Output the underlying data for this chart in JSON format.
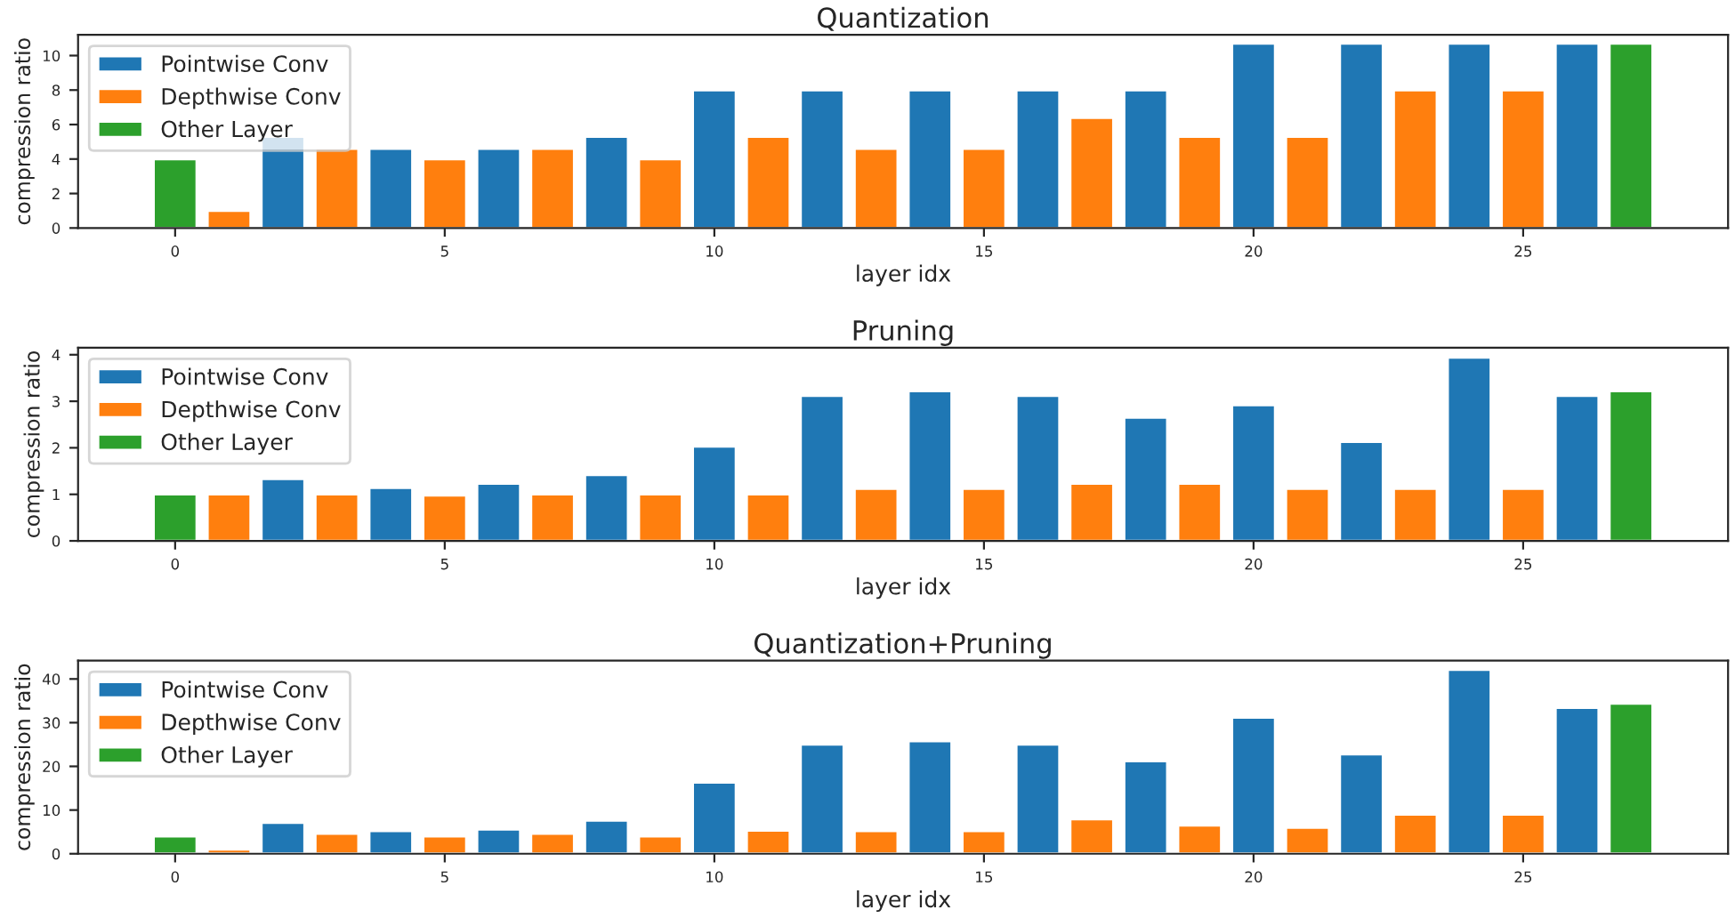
{
  "chart_data": [
    {
      "type": "bar",
      "title": "Quantization",
      "xlabel": "layer idx",
      "ylabel": "compression ratio",
      "xlim": [
        -1.8,
        28.8
      ],
      "xticks": [
        0,
        5,
        10,
        15,
        20,
        25
      ],
      "ylim": [
        0,
        11.2
      ],
      "yticks": [
        0,
        2,
        4,
        6,
        8,
        10
      ],
      "grid": false,
      "legend": "top left",
      "series": [
        {
          "name": "Pointwise Conv",
          "color": "#1f77b4",
          "x": [
            2,
            4,
            6,
            8,
            10,
            12,
            14,
            16,
            18,
            20,
            22,
            24,
            26
          ],
          "values": [
            5.3,
            4.6,
            4.6,
            5.3,
            8,
            8,
            8,
            8,
            8,
            10.7,
            10.7,
            10.7,
            10.7
          ]
        },
        {
          "name": "Depthwise Conv",
          "color": "#ff7f0e",
          "x": [
            1,
            3,
            5,
            7,
            9,
            11,
            13,
            15,
            17,
            19,
            21,
            23,
            25
          ],
          "values": [
            1,
            4.6,
            4,
            4.6,
            4,
            5.3,
            4.6,
            4.6,
            6.4,
            5.3,
            5.3,
            8,
            8
          ]
        },
        {
          "name": "Other Layer",
          "color": "#2ca02c",
          "x": [
            0,
            27
          ],
          "values": [
            4,
            10.7
          ]
        }
      ]
    },
    {
      "type": "bar",
      "title": "Pruning",
      "xlabel": "layer idx",
      "ylabel": "compression ratio",
      "xlim": [
        -1.8,
        28.8
      ],
      "xticks": [
        0,
        5,
        10,
        15,
        20,
        25
      ],
      "ylim": [
        0,
        4.15
      ],
      "yticks": [
        0,
        1,
        2,
        3,
        4
      ],
      "grid": false,
      "legend": "top left",
      "series": [
        {
          "name": "Pointwise Conv",
          "color": "#1f77b4",
          "x": [
            2,
            4,
            6,
            8,
            10,
            12,
            14,
            16,
            18,
            20,
            22,
            24,
            26
          ],
          "values": [
            1.33,
            1.14,
            1.23,
            1.42,
            2.03,
            3.12,
            3.22,
            3.12,
            2.65,
            2.92,
            2.13,
            3.94,
            3.12
          ]
        },
        {
          "name": "Depthwise Conv",
          "color": "#ff7f0e",
          "x": [
            1,
            3,
            5,
            7,
            9,
            11,
            13,
            15,
            17,
            19,
            21,
            23,
            25
          ],
          "values": [
            1.0,
            1.0,
            0.98,
            1.0,
            1.0,
            1.0,
            1.12,
            1.12,
            1.23,
            1.23,
            1.12,
            1.12,
            1.12
          ]
        },
        {
          "name": "Other Layer",
          "color": "#2ca02c",
          "x": [
            0,
            27
          ],
          "values": [
            1.0,
            3.22
          ]
        }
      ]
    },
    {
      "type": "bar",
      "title": "Quantization+Pruning",
      "xlabel": "layer idx",
      "ylabel": "compression ratio",
      "xlim": [
        -1.8,
        28.8
      ],
      "xticks": [
        0,
        5,
        10,
        15,
        20,
        25
      ],
      "ylim": [
        0,
        44.2
      ],
      "yticks": [
        0,
        10,
        20,
        30,
        40
      ],
      "grid": false,
      "legend": "top left",
      "series": [
        {
          "name": "Pointwise Conv",
          "color": "#1f77b4",
          "x": [
            2,
            4,
            6,
            8,
            10,
            12,
            14,
            16,
            18,
            20,
            22,
            24,
            26
          ],
          "values": [
            7.1,
            5.2,
            5.6,
            7.6,
            16.3,
            25.0,
            25.8,
            25.0,
            21.2,
            31.2,
            22.8,
            42.1,
            33.4
          ]
        },
        {
          "name": "Depthwise Conv",
          "color": "#ff7f0e",
          "x": [
            1,
            3,
            5,
            7,
            9,
            11,
            13,
            15,
            17,
            19,
            21,
            23,
            25
          ],
          "values": [
            1.0,
            4.6,
            4.0,
            4.6,
            4.0,
            5.3,
            5.2,
            5.2,
            7.9,
            6.5,
            6.0,
            9.0,
            9.0
          ]
        },
        {
          "name": "Other Layer",
          "color": "#2ca02c",
          "x": [
            0,
            27
          ],
          "values": [
            4.0,
            34.4
          ]
        }
      ]
    }
  ]
}
